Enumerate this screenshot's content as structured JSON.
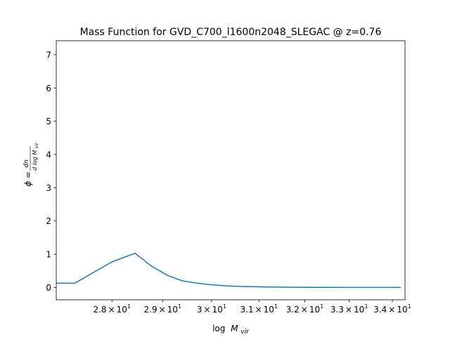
{
  "chart_data": {
    "type": "line",
    "title": "Mass Function for GVD_C700_l1600n2048_SLEGAC @ z=0.76",
    "xlabel_base": "log",
    "xlabel_var": "M",
    "xlabel_sub": "vir",
    "ylabel_left": "ϕ =",
    "ylabel_num": "dn",
    "ylabel_den_pre": "d log ",
    "ylabel_den_var": "M",
    "ylabel_den_sub": "vir",
    "x_scale": "log",
    "xlim": [
      26.94,
      34.3
    ],
    "ylim": [
      -0.37,
      7.42
    ],
    "grid": false,
    "xticks": [
      {
        "value": 28,
        "mant": "2.8",
        "base": "10",
        "exp": "1"
      },
      {
        "value": 29,
        "mant": "2.9",
        "base": "10",
        "exp": "1"
      },
      {
        "value": 30,
        "mant": "3",
        "base": "10",
        "exp": "1"
      },
      {
        "value": 31,
        "mant": "3.1",
        "base": "10",
        "exp": "1"
      },
      {
        "value": 32,
        "mant": "3.2",
        "base": "10",
        "exp": "1"
      },
      {
        "value": 33,
        "mant": "3.3",
        "base": "10",
        "exp": "1"
      },
      {
        "value": 34,
        "mant": "3.4",
        "base": "10",
        "exp": "1"
      }
    ],
    "yticks": [
      {
        "value": 0,
        "label": "0"
      },
      {
        "value": 1,
        "label": "1"
      },
      {
        "value": 2,
        "label": "2"
      },
      {
        "value": 3,
        "label": "3"
      },
      {
        "value": 4,
        "label": "4"
      },
      {
        "value": 5,
        "label": "5"
      },
      {
        "value": 6,
        "label": "6"
      },
      {
        "value": 7,
        "label": "7"
      }
    ],
    "series": [
      {
        "color": "#1f77b4",
        "x": [
          26.94,
          27.29,
          27.64,
          28.0,
          28.45,
          28.77,
          29.1,
          29.4,
          29.7,
          30.0,
          30.3,
          30.6,
          31.0,
          31.4,
          31.8,
          32.2,
          32.6,
          33.0,
          33.4,
          33.8,
          34.2
        ],
        "y": [
          0.13,
          0.13,
          0.45,
          0.77,
          1.03,
          0.65,
          0.36,
          0.2,
          0.13,
          0.08,
          0.05,
          0.03,
          0.02,
          0.012,
          0.008,
          0.005,
          0.004,
          0.003,
          0.002,
          0.002,
          0.002
        ]
      }
    ]
  }
}
